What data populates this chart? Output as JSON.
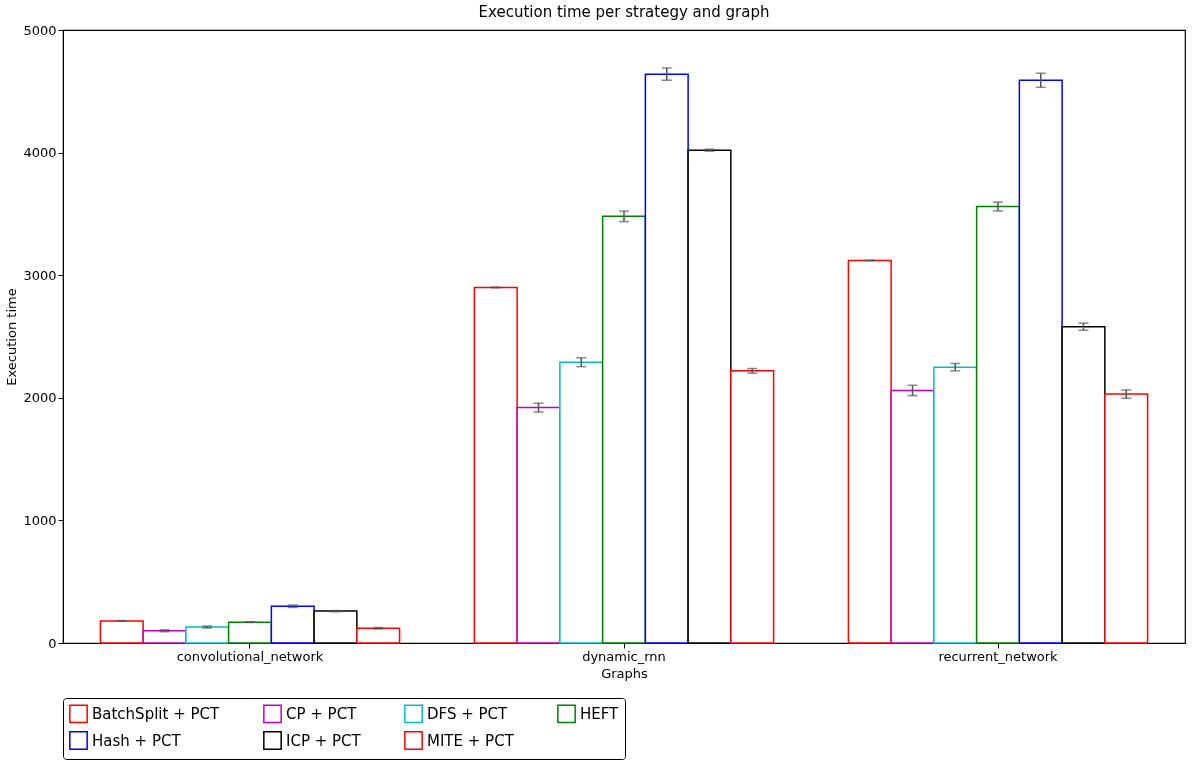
{
  "chart_data": {
    "type": "bar",
    "title": "Execution time per strategy and graph",
    "xlabel": "Graphs",
    "ylabel": "Execution time",
    "categories": [
      "convolutional_network",
      "dynamic_rnn",
      "recurrent_network"
    ],
    "series": [
      {
        "name": "BatchSplit + PCT",
        "color": "#ff0000",
        "values": [
          180,
          2900,
          3120
        ],
        "errors": [
          3,
          3,
          3
        ]
      },
      {
        "name": "CP + PCT",
        "color": "#bf00bf",
        "values": [
          100,
          1920,
          2060
        ],
        "errors": [
          8,
          36,
          42
        ]
      },
      {
        "name": "DFS + PCT",
        "color": "#00bfbf",
        "values": [
          130,
          2290,
          2250
        ],
        "errors": [
          8,
          36,
          30
        ]
      },
      {
        "name": "HEFT",
        "color": "#008000",
        "values": [
          170,
          3480,
          3560
        ],
        "errors": [
          3,
          43,
          36
        ]
      },
      {
        "name": "Hash + PCT",
        "color": "#0000ff",
        "values": [
          300,
          4640,
          4590
        ],
        "errors": [
          10,
          50,
          57
        ]
      },
      {
        "name": "ICP + PCT",
        "color": "#000000",
        "values": [
          260,
          4020,
          2580
        ],
        "errors": [
          5,
          8,
          29
        ]
      },
      {
        "name": "MITE + PCT",
        "color": "#ff0000",
        "values": [
          120,
          2220,
          2030
        ],
        "errors": [
          6,
          19,
          34
        ]
      }
    ],
    "ylim": [
      0,
      5000
    ],
    "yticks": [
      0,
      1000,
      2000,
      3000,
      4000,
      5000
    ],
    "grid": false,
    "legend": "bottom"
  }
}
